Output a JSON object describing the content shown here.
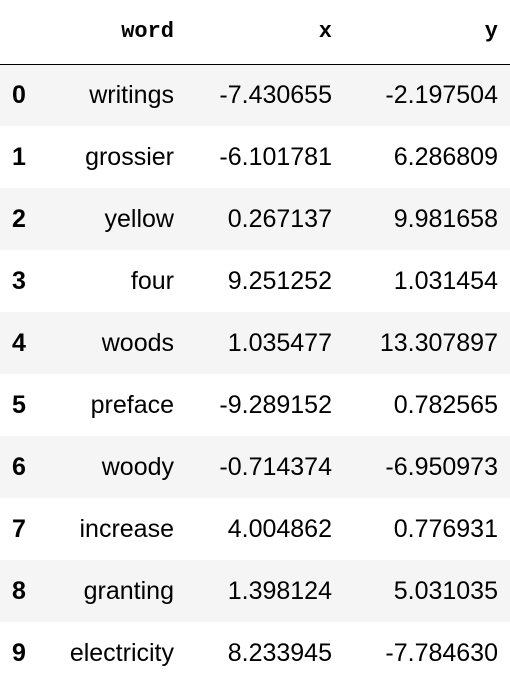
{
  "table": {
    "columns": {
      "index": "",
      "word": "word",
      "x": "x",
      "y": "y"
    },
    "rows": [
      {
        "index": "0",
        "word": "writings",
        "x": "-7.430655",
        "y": "-2.197504"
      },
      {
        "index": "1",
        "word": "grossier",
        "x": "-6.101781",
        "y": "6.286809"
      },
      {
        "index": "2",
        "word": "yellow",
        "x": "0.267137",
        "y": "9.981658"
      },
      {
        "index": "3",
        "word": "four",
        "x": "9.251252",
        "y": "1.031454"
      },
      {
        "index": "4",
        "word": "woods",
        "x": "1.035477",
        "y": "13.307897"
      },
      {
        "index": "5",
        "word": "preface",
        "x": "-9.289152",
        "y": "0.782565"
      },
      {
        "index": "6",
        "word": "woody",
        "x": "-0.714374",
        "y": "-6.950973"
      },
      {
        "index": "7",
        "word": "increase",
        "x": "4.004862",
        "y": "0.776931"
      },
      {
        "index": "8",
        "word": "granting",
        "x": "1.398124",
        "y": "5.031035"
      },
      {
        "index": "9",
        "word": "electricity",
        "x": "8.233945",
        "y": "-7.784630"
      }
    ]
  }
}
